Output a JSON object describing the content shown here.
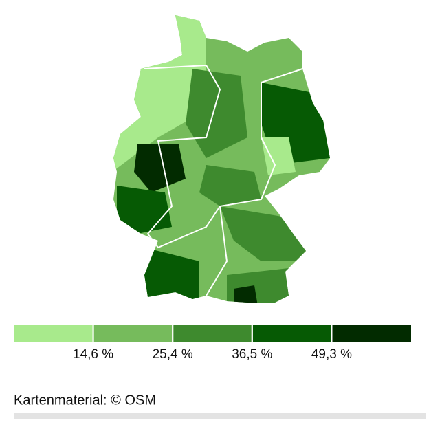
{
  "map": {
    "legend": {
      "colors": [
        "#a8ea8c",
        "#76bb5c",
        "#3e8a2e",
        "#065a04",
        "#022b00"
      ],
      "breaks": [
        {
          "value": 14.6,
          "label": "14,6 %"
        },
        {
          "value": 25.4,
          "label": "25,4 %"
        },
        {
          "value": 36.5,
          "label": "36,5 %"
        },
        {
          "value": 49.3,
          "label": "49,3 %"
        }
      ]
    },
    "credit": "Kartenmaterial: © OSM"
  }
}
